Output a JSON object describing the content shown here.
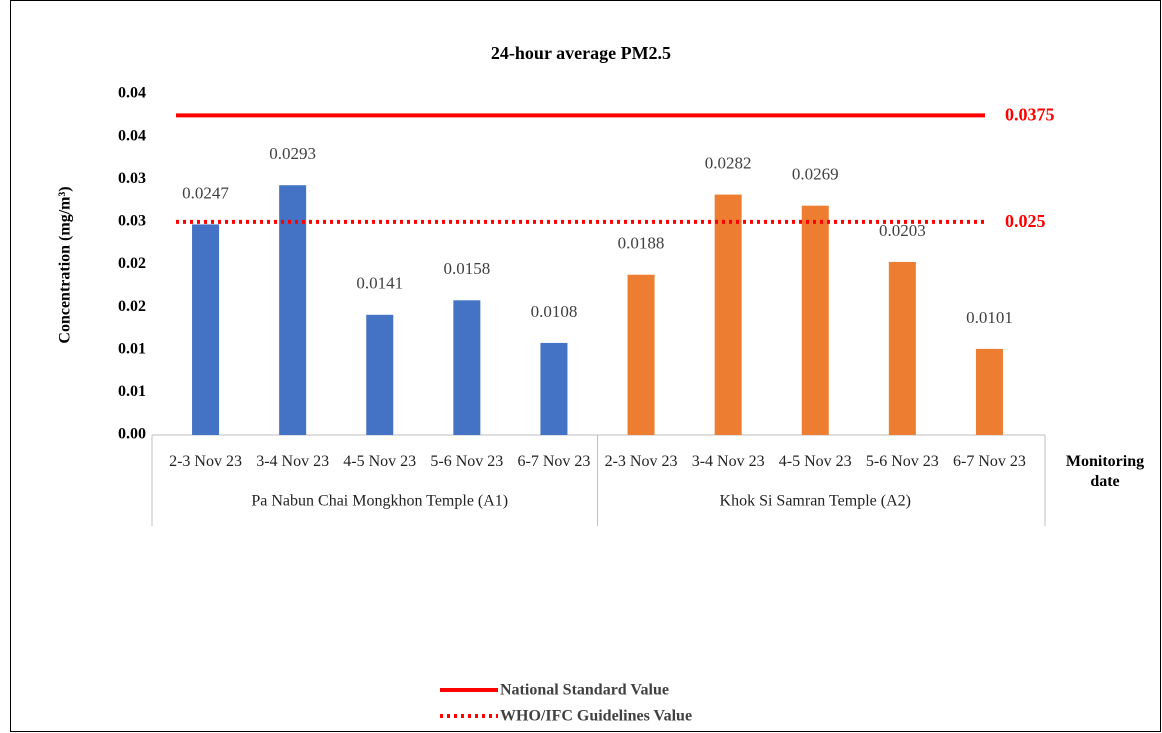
{
  "chart_data": {
    "type": "bar",
    "title": "24-hour average PM2.5",
    "y_label": "Concentration (mg/m³)",
    "x_label": "Monitoring date",
    "categories": [
      "2-3 Nov 23",
      "3-4 Nov 23",
      "4-5 Nov 23",
      "5-6 Nov 23",
      "6-7 Nov 23",
      "2-3 Nov 23",
      "3-4 Nov 23",
      "4-5 Nov 23",
      "5-6 Nov 23",
      "6-7 Nov 23"
    ],
    "series": [
      {
        "name": "Pa Nabun Chai Mongkhon Temple (A1)",
        "color": "#4472c4",
        "values": [
          0.0247,
          0.0293,
          0.0141,
          0.0158,
          0.0108,
          null,
          null,
          null,
          null,
          null
        ]
      },
      {
        "name": "Khok Si Samran Temple (A2)",
        "color": "#ed7d31",
        "values": [
          null,
          null,
          null,
          null,
          null,
          0.0188,
          0.0282,
          0.0269,
          0.0203,
          0.0101
        ]
      }
    ],
    "reference_lines": [
      {
        "name": "National Standard Value",
        "value": 0.0375,
        "color": "#ff0000",
        "style": "solid"
      },
      {
        "name": "WHO/IFC Guidelines Value",
        "value": 0.025,
        "color": "#ff0000",
        "style": "dotted"
      }
    ],
    "ylim": [
      0,
      0.04
    ],
    "yticks": [
      {
        "value": 0,
        "label": "0.00"
      },
      {
        "value": 0.005,
        "label": "0.01"
      },
      {
        "value": 0.01,
        "label": "0.01"
      },
      {
        "value": 0.015,
        "label": "0.02"
      },
      {
        "value": 0.02,
        "label": "0.02"
      },
      {
        "value": 0.025,
        "label": "0.03"
      },
      {
        "value": 0.03,
        "label": "0.03"
      },
      {
        "value": 0.035,
        "label": "0.04"
      },
      {
        "value": 0.04,
        "label": "0.04"
      }
    ],
    "grid": false,
    "legend": "bottom"
  }
}
